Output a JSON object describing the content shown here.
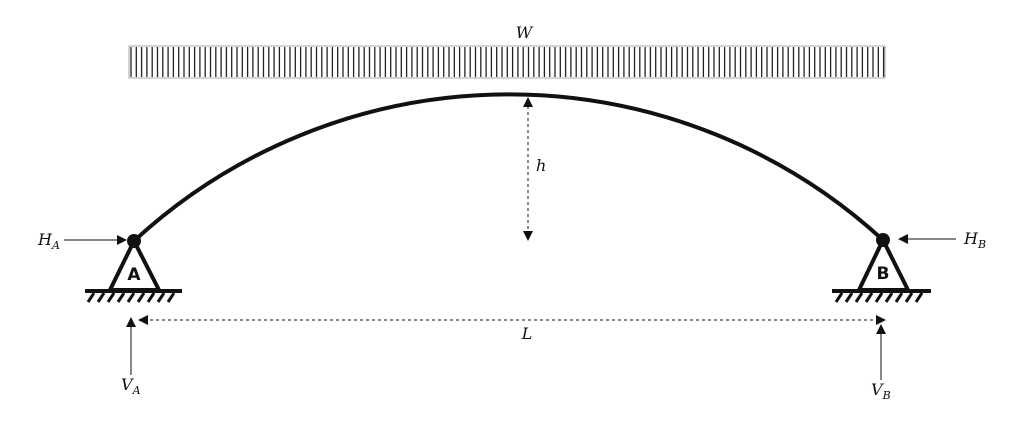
{
  "load": {
    "label": "W"
  },
  "rise": {
    "label": "h"
  },
  "span": {
    "label": "L"
  },
  "support_a": {
    "label": "A",
    "h_main": "H",
    "h_sub": "A",
    "v_main": "V",
    "v_sub": "A"
  },
  "support_b": {
    "label": "B",
    "h_main": "H",
    "h_sub": "B",
    "v_main": "V",
    "v_sub": "B"
  },
  "colors": {
    "stroke": "#111111",
    "load_border": "#999999"
  }
}
